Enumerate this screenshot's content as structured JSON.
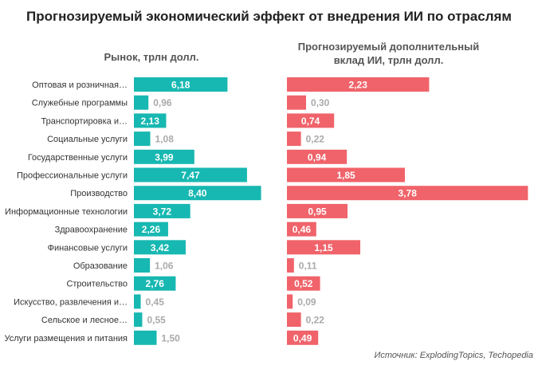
{
  "title": "Прогнозируемый экономический эффект от внедрения ИИ по отраслям",
  "source": "Источник: ExplodingTopics, Techopedia",
  "colors": {
    "teal": "#17b8b1",
    "red": "#f0636a",
    "inside_label": "#ffffff",
    "outside_label": "#aaaaaa",
    "category_text": "#333333"
  },
  "chart_data": [
    {
      "type": "bar",
      "orientation": "horizontal",
      "title": "Рынок, трлн долл.",
      "categories": [
        "Оптовая и розничная…",
        "Служебные программы",
        "Транспортировка и…",
        "Социальные услуги",
        "Государственные услуги",
        "Профессиональные услуги",
        "Производство",
        "Информационные технологии",
        "Здравоохранение",
        "Финансовые услуги",
        "Образование",
        "Строительство",
        "Искусство, развлечения и…",
        "Сельское и лесное…",
        "Услуги размещения и питания"
      ],
      "values": [
        6.18,
        0.96,
        2.13,
        1.08,
        3.99,
        7.47,
        8.4,
        3.72,
        2.26,
        3.42,
        1.06,
        2.76,
        0.45,
        0.55,
        1.5
      ],
      "labels": [
        "6,18",
        "0,96",
        "2,13",
        "1,08",
        "3,99",
        "7,47",
        "8,40",
        "3,72",
        "2,26",
        "3,42",
        "1,06",
        "2,76",
        "0,45",
        "0,55",
        "1,50"
      ],
      "color": "#17b8b1"
    },
    {
      "type": "bar",
      "orientation": "horizontal",
      "title": "Прогнозируемый  дополнительный\nвклад ИИ, трлн долл.",
      "categories": [
        "Оптовая и розничная…",
        "Служебные программы",
        "Транспортировка и…",
        "Социальные услуги",
        "Государственные услуги",
        "Профессиональные услуги",
        "Производство",
        "Информационные технологии",
        "Здравоохранение",
        "Финансовые услуги",
        "Образование",
        "Строительство",
        "Искусство, развлечения и…",
        "Сельское и лесное…",
        "Услуги размещения и питания"
      ],
      "values": [
        2.23,
        0.3,
        0.74,
        0.22,
        0.94,
        1.85,
        3.78,
        0.95,
        0.46,
        1.15,
        0.11,
        0.52,
        0.09,
        0.22,
        0.49
      ],
      "labels": [
        "2,23",
        "0,30",
        "0,74",
        "0,22",
        "0,94",
        "1,85",
        "3,78",
        "0,95",
        "0,46",
        "1,15",
        "0,11",
        "0,52",
        "0,09",
        "0,22",
        "0,49"
      ],
      "color": "#f0636a"
    }
  ]
}
